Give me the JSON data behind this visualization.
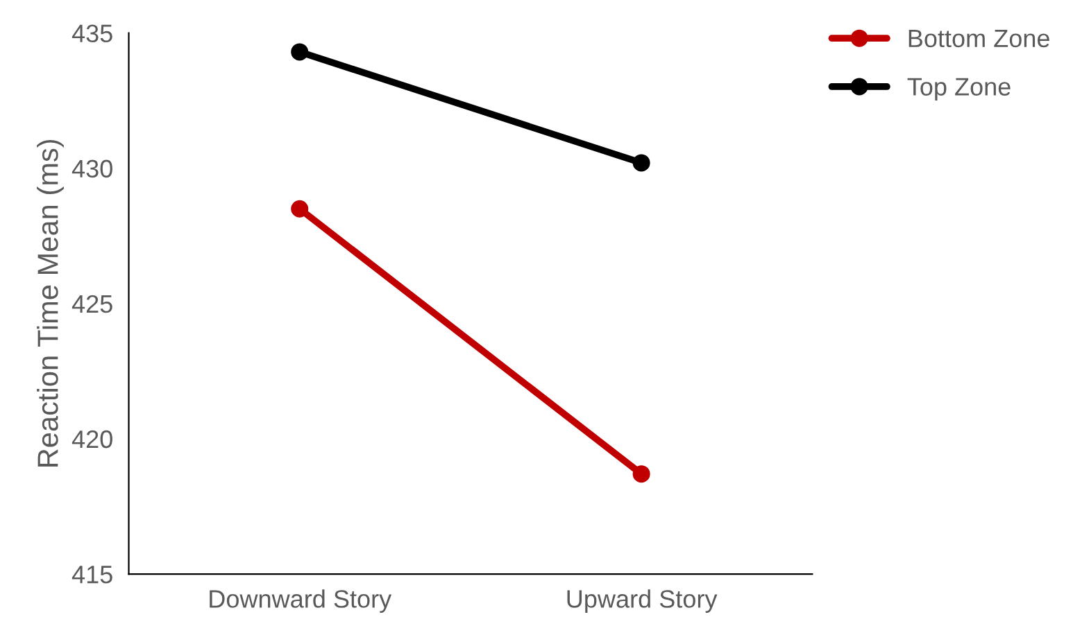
{
  "chart_data": {
    "type": "line",
    "ylabel": "Reaction Time Mean (ms)",
    "categories": [
      "Downward Story",
      "Upward Story"
    ],
    "series": [
      {
        "name": "Bottom Zone",
        "color": "#c00000",
        "values": [
          428.5,
          418.7
        ]
      },
      {
        "name": "Top Zone",
        "color": "#000000",
        "values": [
          434.3,
          430.2
        ]
      }
    ],
    "ylim": [
      415,
      435
    ],
    "yticks": [
      415,
      420,
      425,
      430,
      435
    ],
    "grid": false,
    "legend": "top right",
    "marker": "circle",
    "line_style": "solid"
  }
}
